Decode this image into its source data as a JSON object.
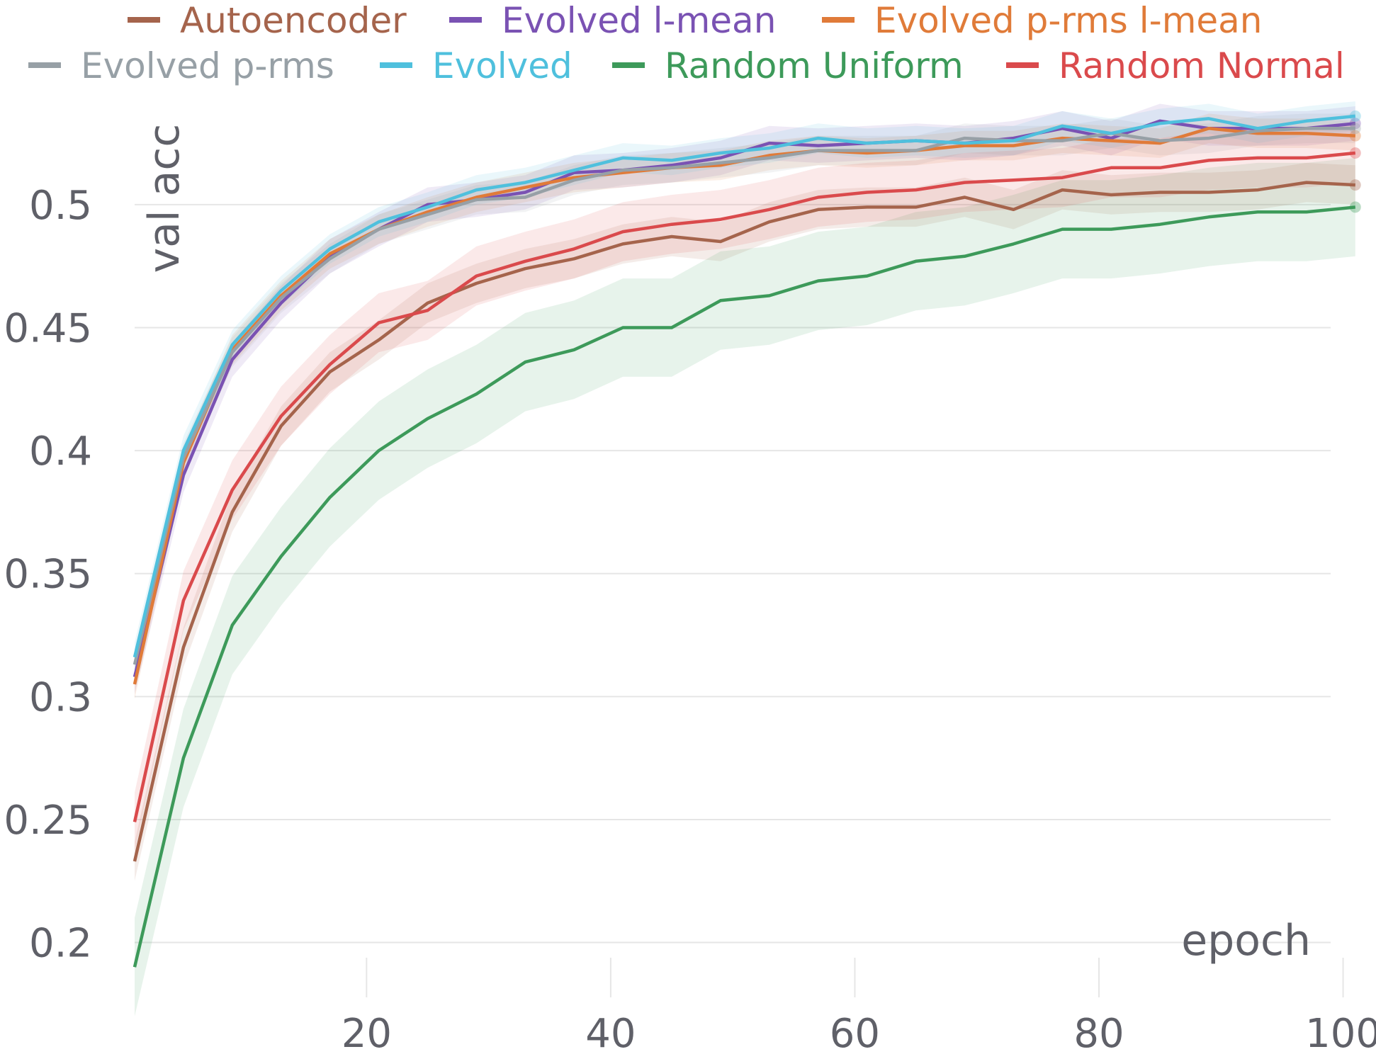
{
  "chart_data": {
    "type": "line",
    "xlabel": "epoch",
    "ylabel": "val acc",
    "xlim": [
      1,
      102
    ],
    "ylim": [
      0.18,
      0.54
    ],
    "x_ticks": [
      20,
      40,
      60,
      80,
      100
    ],
    "y_ticks": [
      0.2,
      0.25,
      0.3,
      0.35,
      0.4,
      0.45,
      0.5
    ],
    "y_tick_labels": [
      "0.2",
      "0.25",
      "0.3",
      "0.35",
      "0.4",
      "0.45",
      "0.5"
    ],
    "grid": true,
    "legend": "top",
    "x": [
      1,
      5,
      9,
      13,
      17,
      21,
      25,
      29,
      33,
      37,
      41,
      45,
      49,
      53,
      57,
      61,
      65,
      69,
      73,
      77,
      81,
      85,
      89,
      93,
      97,
      101
    ],
    "series": [
      {
        "name": "Autoencoder",
        "color": "#a5644c",
        "values": [
          0.233,
          0.32,
          0.375,
          0.41,
          0.432,
          0.445,
          0.46,
          0.468,
          0.474,
          0.478,
          0.484,
          0.487,
          0.485,
          0.493,
          0.498,
          0.499,
          0.499,
          0.503,
          0.498,
          0.506,
          0.504,
          0.505,
          0.505,
          0.506,
          0.509,
          0.508
        ],
        "band": 0.008
      },
      {
        "name": "Evolved l-mean",
        "color": "#7a52b3",
        "values": [
          0.308,
          0.39,
          0.437,
          0.46,
          0.479,
          0.49,
          0.5,
          0.502,
          0.505,
          0.513,
          0.514,
          0.516,
          0.519,
          0.525,
          0.524,
          0.525,
          0.526,
          0.525,
          0.527,
          0.531,
          0.527,
          0.534,
          0.531,
          0.531,
          0.531,
          0.533
        ],
        "band": 0.007
      },
      {
        "name": "Evolved p-rms l-mean",
        "color": "#e07b39",
        "values": [
          0.305,
          0.395,
          0.441,
          0.463,
          0.48,
          0.49,
          0.497,
          0.503,
          0.507,
          0.511,
          0.513,
          0.515,
          0.516,
          0.52,
          0.522,
          0.521,
          0.522,
          0.524,
          0.524,
          0.527,
          0.526,
          0.525,
          0.531,
          0.529,
          0.529,
          0.528
        ],
        "band": 0.006
      },
      {
        "name": "Evolved p-rms",
        "color": "#97a0a6",
        "values": [
          0.313,
          0.397,
          0.44,
          0.462,
          0.478,
          0.49,
          0.496,
          0.502,
          0.503,
          0.51,
          0.514,
          0.515,
          0.517,
          0.519,
          0.522,
          0.522,
          0.522,
          0.527,
          0.526,
          0.526,
          0.529,
          0.526,
          0.527,
          0.53,
          0.531,
          0.531
        ],
        "band": 0.006
      },
      {
        "name": "Evolved",
        "color": "#4fc0dd",
        "values": [
          0.316,
          0.4,
          0.443,
          0.465,
          0.482,
          0.493,
          0.499,
          0.506,
          0.509,
          0.514,
          0.519,
          0.518,
          0.521,
          0.523,
          0.527,
          0.525,
          0.526,
          0.525,
          0.526,
          0.532,
          0.529,
          0.533,
          0.535,
          0.531,
          0.534,
          0.536
        ],
        "band": 0.006
      },
      {
        "name": "Random Uniform",
        "color": "#3d9a5a",
        "values": [
          0.19,
          0.275,
          0.329,
          0.357,
          0.381,
          0.4,
          0.413,
          0.423,
          0.436,
          0.441,
          0.45,
          0.45,
          0.461,
          0.463,
          0.469,
          0.471,
          0.477,
          0.479,
          0.484,
          0.49,
          0.49,
          0.492,
          0.495,
          0.497,
          0.497,
          0.499
        ],
        "band": 0.02
      },
      {
        "name": "Random Normal",
        "color": "#da4a4c",
        "values": [
          0.249,
          0.339,
          0.384,
          0.414,
          0.435,
          0.452,
          0.457,
          0.471,
          0.477,
          0.482,
          0.489,
          0.492,
          0.494,
          0.498,
          0.503,
          0.505,
          0.506,
          0.509,
          0.51,
          0.511,
          0.515,
          0.515,
          0.518,
          0.519,
          0.519,
          0.521
        ],
        "band": 0.012
      }
    ]
  }
}
